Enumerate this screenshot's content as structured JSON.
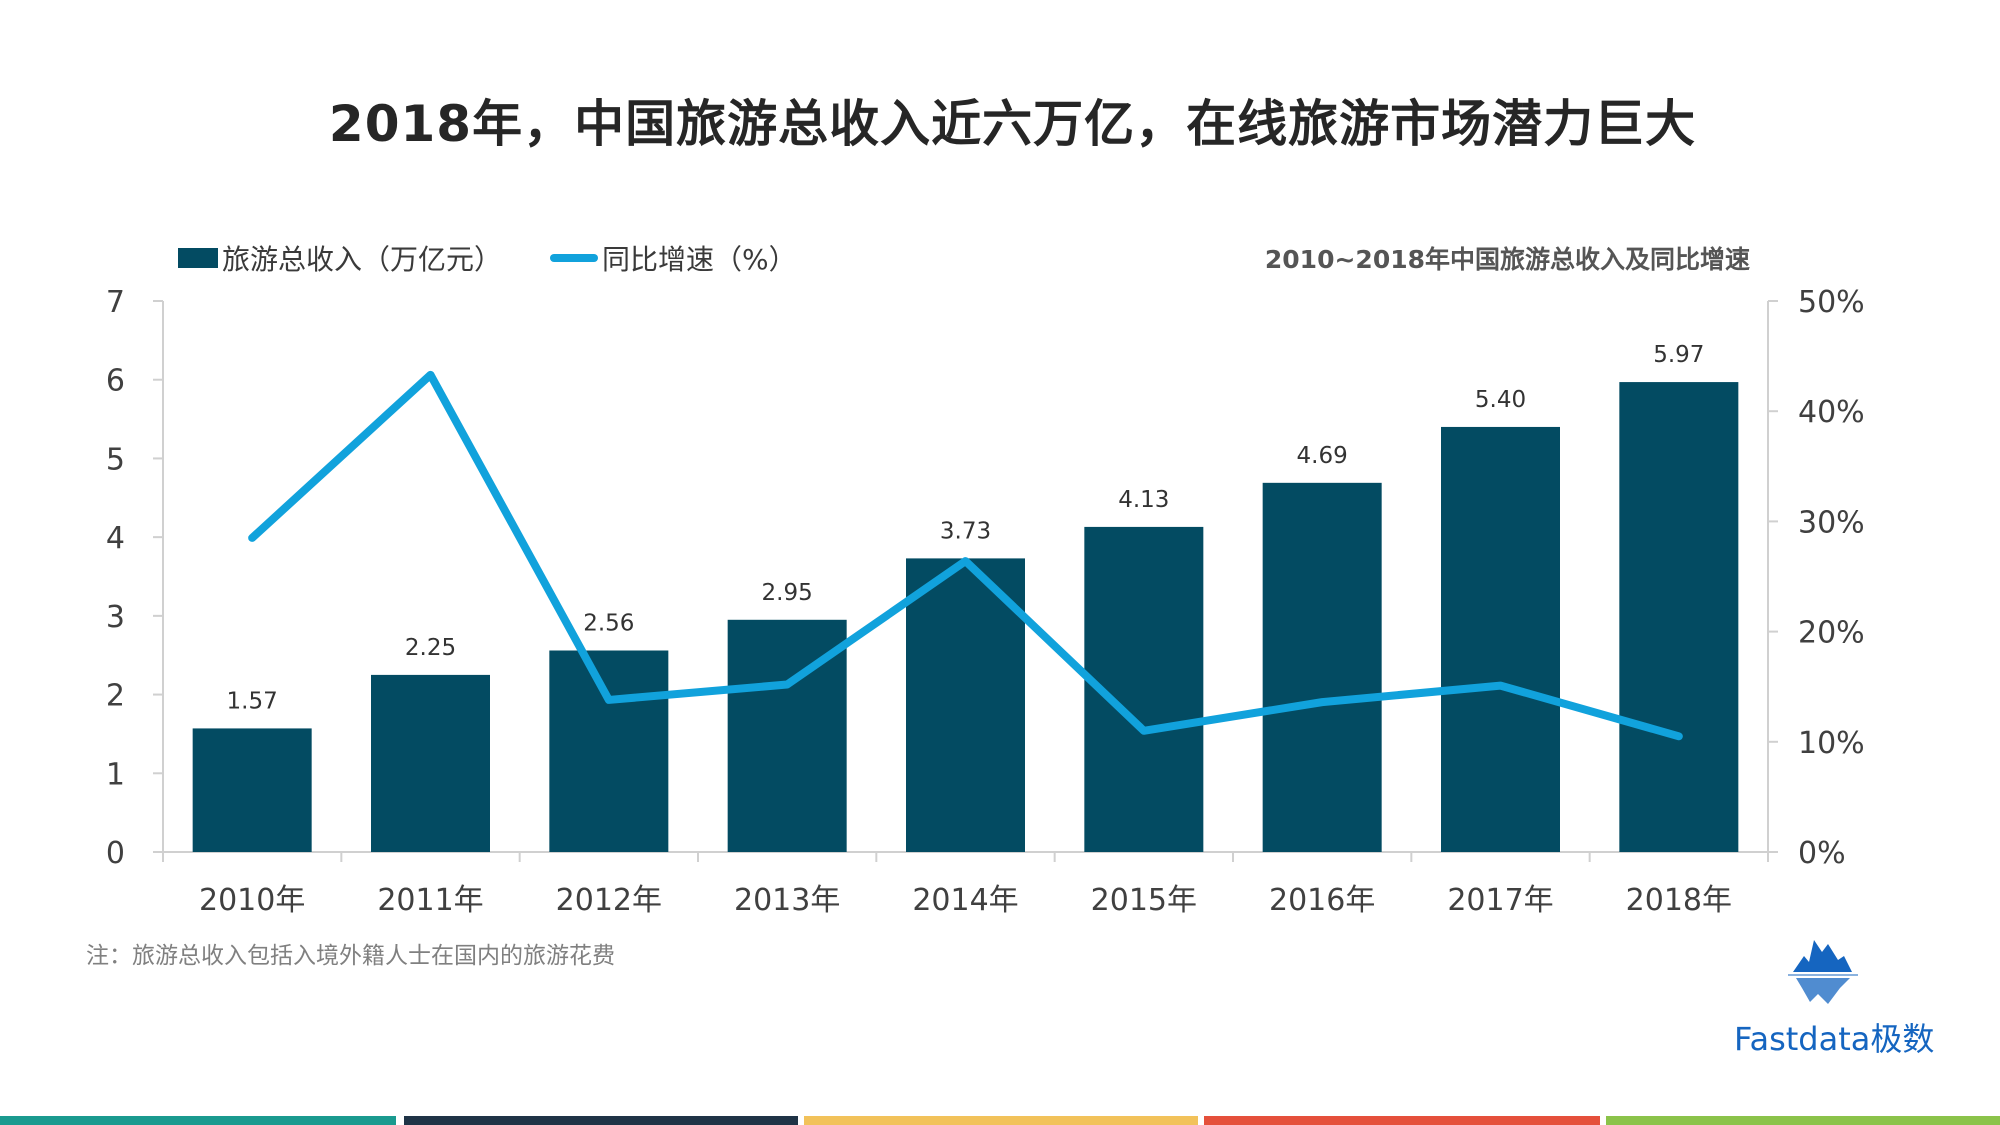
{
  "title": "2018年，中国旅游总收入近六万亿，在线旅游市场潜力巨大",
  "legend": {
    "bar_label": "旅游总收入（万亿元）",
    "line_label": "同比增速（%）"
  },
  "subtitle": "2010~2018年中国旅游总收入及同比增速",
  "note": "注：旅游总收入包括入境外籍人士在国内的旅游花费",
  "brand": {
    "name": "Fastdata极数"
  },
  "colors": {
    "bar": "#034b62",
    "line": "#11a2dc",
    "footer": [
      "#1a9a8f",
      "#1f3346",
      "#f2c25a",
      "#e5503b",
      "#8bc34a"
    ]
  },
  "chart_data": {
    "type": "bar",
    "categories": [
      "2010年",
      "2011年",
      "2012年",
      "2013年",
      "2014年",
      "2015年",
      "2016年",
      "2017年",
      "2018年"
    ],
    "series": [
      {
        "name": "旅游总收入（万亿元）",
        "type": "bar",
        "axis": "left",
        "values": [
          1.57,
          2.25,
          2.56,
          2.95,
          3.73,
          4.13,
          4.69,
          5.4,
          5.97
        ],
        "labels": [
          "1.57",
          "2.25",
          "2.56",
          "2.95",
          "3.73",
          "4.13",
          "4.69",
          "5.40",
          "5.97"
        ]
      },
      {
        "name": "同比增速（%）",
        "type": "line",
        "axis": "right",
        "values": [
          28.5,
          43.3,
          13.8,
          15.2,
          26.4,
          11.0,
          13.6,
          15.1,
          10.5
        ]
      }
    ],
    "y_left": {
      "ylim": [
        0,
        7
      ],
      "ticks": [
        "0",
        "1",
        "2",
        "3",
        "4",
        "5",
        "6",
        "7"
      ]
    },
    "y_right": {
      "ylim": [
        0,
        50
      ],
      "ticks": [
        "0%",
        "10%",
        "20%",
        "30%",
        "40%",
        "50%"
      ]
    },
    "grid": false,
    "legend_position": "top-left"
  }
}
